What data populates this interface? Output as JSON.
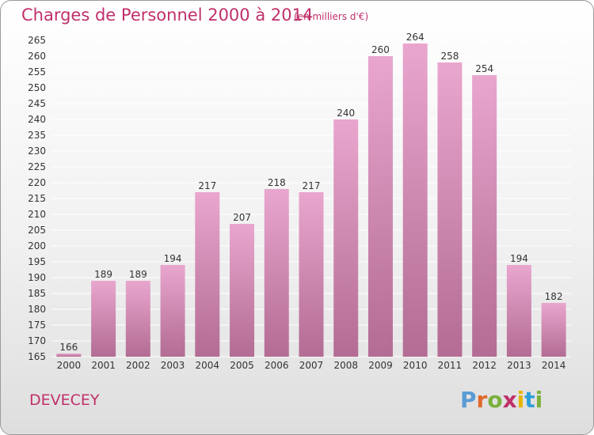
{
  "header": {
    "title": "Charges de Personnel 2000 à 2014",
    "subtitle": "(en milliers d'€)"
  },
  "footer": {
    "town": "DEVECEY",
    "logo": "Proxiti"
  },
  "colors": {
    "title": "#c0306b",
    "bar_top": "#e9a6ce",
    "bar_bottom": "#b36c93",
    "grid": "#ffffff",
    "logo_letters": [
      "#5b9bd5",
      "#e06a2c",
      "#7ab03c",
      "#c0306b",
      "#e8b400",
      "#2f9fd8",
      "#7ab03c"
    ]
  },
  "chart_data": {
    "type": "bar",
    "title": "Charges de Personnel 2000 à 2014",
    "subtitle": "(en milliers d'€)",
    "xlabel": "",
    "ylabel": "",
    "categories": [
      "2000",
      "2001",
      "2002",
      "2003",
      "2004",
      "2005",
      "2006",
      "2007",
      "2008",
      "2009",
      "2010",
      "2011",
      "2012",
      "2013",
      "2014"
    ],
    "values": [
      166,
      189,
      189,
      194,
      217,
      207,
      218,
      217,
      240,
      260,
      264,
      258,
      254,
      194,
      182
    ],
    "ylim": [
      165,
      265
    ],
    "yticks": [
      165,
      170,
      175,
      180,
      185,
      190,
      195,
      200,
      205,
      210,
      215,
      220,
      225,
      230,
      235,
      240,
      245,
      250,
      255,
      260,
      265
    ],
    "grid": true,
    "legend": "none"
  }
}
